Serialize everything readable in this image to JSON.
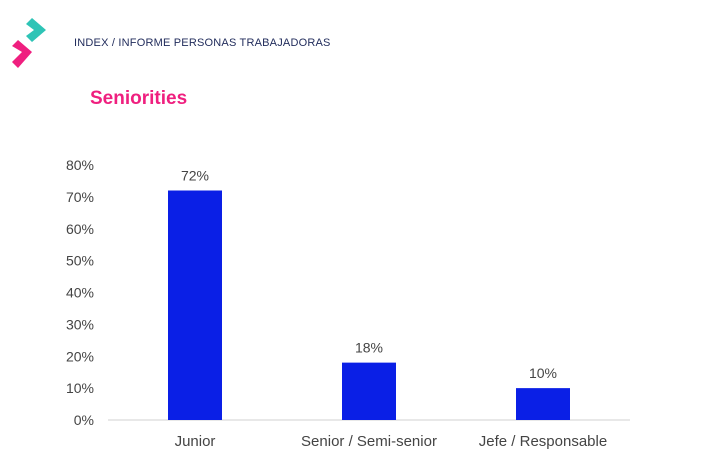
{
  "header": {
    "breadcrumb": "INDEX / INFORME PERSONAS TRABAJADORAS",
    "title": "Seniorities"
  },
  "colors": {
    "bar": "#0a1fe6",
    "title": "#ef1f7f",
    "breadcrumb": "#1f2a5a",
    "axis_text": "#444444",
    "logo_teal": "#2ec4b6",
    "logo_pink": "#ef1f7f"
  },
  "logo": {
    "icon": "brand-logo-icon"
  },
  "chart_data": {
    "type": "bar",
    "categories": [
      "Junior",
      "Senior / Semi-senior",
      "Jefe / Responsable"
    ],
    "values": [
      72,
      18,
      10
    ],
    "data_labels": [
      "72%",
      "18%",
      "10%"
    ],
    "ylim": [
      0,
      80
    ],
    "yticks": [
      0,
      10,
      20,
      30,
      40,
      50,
      60,
      70,
      80
    ],
    "ytick_labels": [
      "0%",
      "10%",
      "20%",
      "30%",
      "40%",
      "50%",
      "60%",
      "70%",
      "80%"
    ],
    "grid": false,
    "legend": false
  }
}
